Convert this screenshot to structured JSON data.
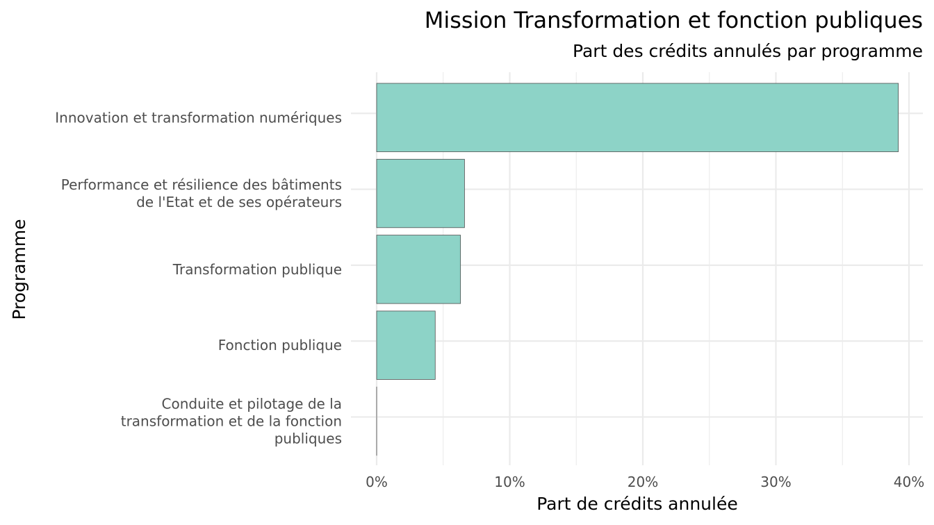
{
  "chart_data": {
    "type": "bar",
    "orientation": "horizontal",
    "title": "Mission Transformation et fonction publiques",
    "subtitle": "Part des crédits annulés par programme",
    "xlabel": "Part de crédits annulée",
    "ylabel": "Programme",
    "categories": [
      [
        "Innovation et transformation numériques"
      ],
      [
        "Performance et résilience des bâtiments",
        "de l'Etat et de ses opérateurs"
      ],
      [
        "Transformation publique"
      ],
      [
        "Fonction publique"
      ],
      [
        "Conduite et pilotage de la",
        "transformation et de la fonction",
        "publiques"
      ]
    ],
    "values": [
      39.2,
      6.6,
      6.3,
      4.4,
      0.0
    ],
    "xlim": [
      0,
      40
    ],
    "x_ticks": [
      0,
      10,
      20,
      30,
      40
    ],
    "x_tick_labels": [
      "0%",
      "10%",
      "20%",
      "30%",
      "40%"
    ],
    "grid": true,
    "legend": "none",
    "bar_color": "#8dd3c7",
    "bar_outline_color": "#4d4d4d"
  }
}
